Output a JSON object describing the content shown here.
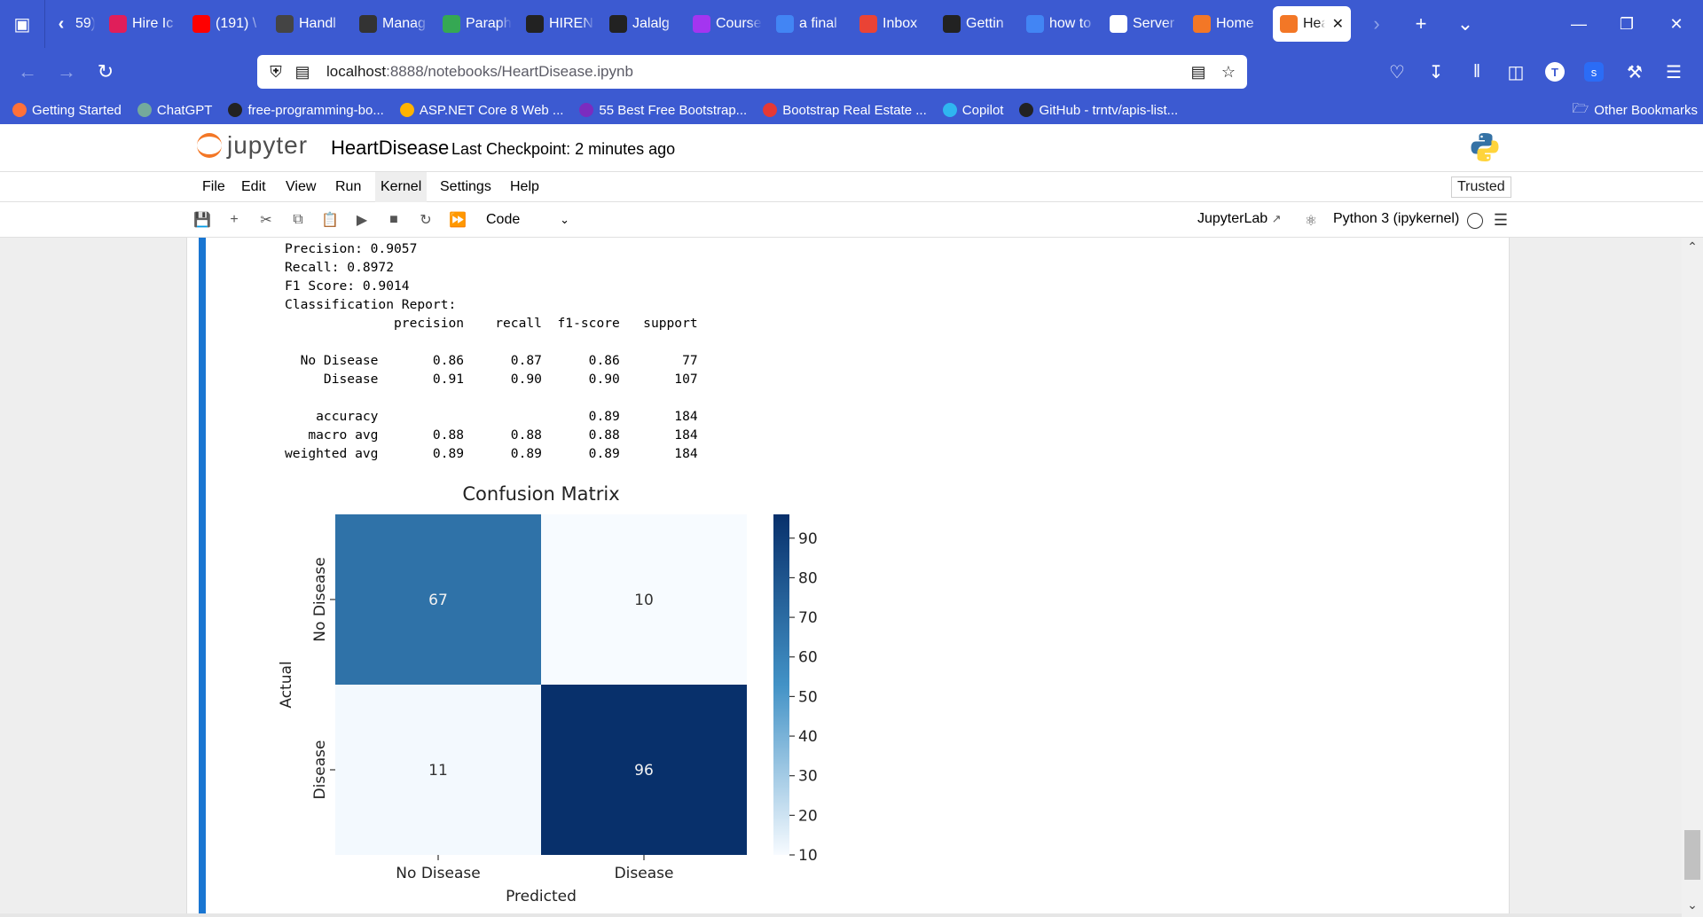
{
  "browser": {
    "tabs": [
      {
        "label": "59) \\",
        "color": "#3c5ad1"
      },
      {
        "label": "Hire Ic",
        "color": "#e01e5a"
      },
      {
        "label": "(191) \\",
        "color": "#ff0000"
      },
      {
        "label": "Handl",
        "color": "#444444"
      },
      {
        "label": "Manag",
        "color": "#333333"
      },
      {
        "label": "Paraph",
        "color": "#35a853"
      },
      {
        "label": "HIREN",
        "color": "#222222"
      },
      {
        "label": "Jalalg",
        "color": "#222222"
      },
      {
        "label": "Course",
        "color": "#a435f0"
      },
      {
        "label": "a final",
        "color": "#4285f4"
      },
      {
        "label": "Inbox",
        "color": "#ea4335"
      },
      {
        "label": "Gettin",
        "color": "#222222"
      },
      {
        "label": "how to",
        "color": "#4285f4"
      },
      {
        "label": "Server",
        "color": "#ffffff"
      },
      {
        "label": "Home",
        "color": "#f37726"
      }
    ],
    "active_tab": {
      "label": "Hea",
      "color": "#f37726"
    },
    "url_host": "localhost",
    "url_path": ":8888/notebooks/HeartDisease.ipynb",
    "bookmarks": [
      {
        "label": "Getting Started",
        "color": "#ff7139"
      },
      {
        "label": "ChatGPT",
        "color": "#74aa9c"
      },
      {
        "label": "free-programming-bo...",
        "color": "#222222"
      },
      {
        "label": "ASP.NET Core 8 Web ...",
        "color": "#ffb300"
      },
      {
        "label": "55 Best Free Bootstrap...",
        "color": "#7b2cbf"
      },
      {
        "label": "Bootstrap Real Estate ...",
        "color": "#e53935"
      },
      {
        "label": "Copilot",
        "color": "#2fb6f0"
      },
      {
        "label": "GitHub - trntv/apis-list...",
        "color": "#222222"
      }
    ],
    "other_bookmarks": "Other Bookmarks"
  },
  "jupyter": {
    "logo_text": "jupyter",
    "notebook_name": "HeartDisease",
    "checkpoint": "Last Checkpoint: 2 minutes ago",
    "menus": [
      "File",
      "Edit",
      "View",
      "Run",
      "Kernel",
      "Settings",
      "Help"
    ],
    "trusted": "Trusted",
    "cell_type": "Code",
    "jupyterlab_link": "JupyterLab",
    "kernel": "Python 3 (ipykernel)"
  },
  "output": {
    "lines": [
      "Precision: 0.9057",
      "Recall: 0.8972",
      "F1 Score: 0.9014",
      "Classification Report:",
      "              precision    recall  f1-score   support",
      "",
      "  No Disease       0.86      0.87      0.86        77",
      "     Disease       0.91      0.90      0.90       107",
      "",
      "    accuracy                           0.89       184",
      "   macro avg       0.88      0.88      0.88       184",
      "weighted avg       0.89      0.89      0.89       184"
    ]
  },
  "chart_data": {
    "type": "heatmap",
    "title": "Confusion Matrix",
    "xlabel": "Predicted",
    "ylabel": "Actual",
    "x_categories": [
      "No Disease",
      "Disease"
    ],
    "y_categories": [
      "No Disease",
      "Disease"
    ],
    "values": [
      [
        67,
        10
      ],
      [
        11,
        96
      ]
    ],
    "colorbar_ticks": [
      10,
      20,
      30,
      40,
      50,
      60,
      70,
      80,
      90
    ],
    "colorbar_range": [
      10,
      96
    ],
    "colormap": [
      "#f7fbff",
      "#08306b"
    ]
  }
}
